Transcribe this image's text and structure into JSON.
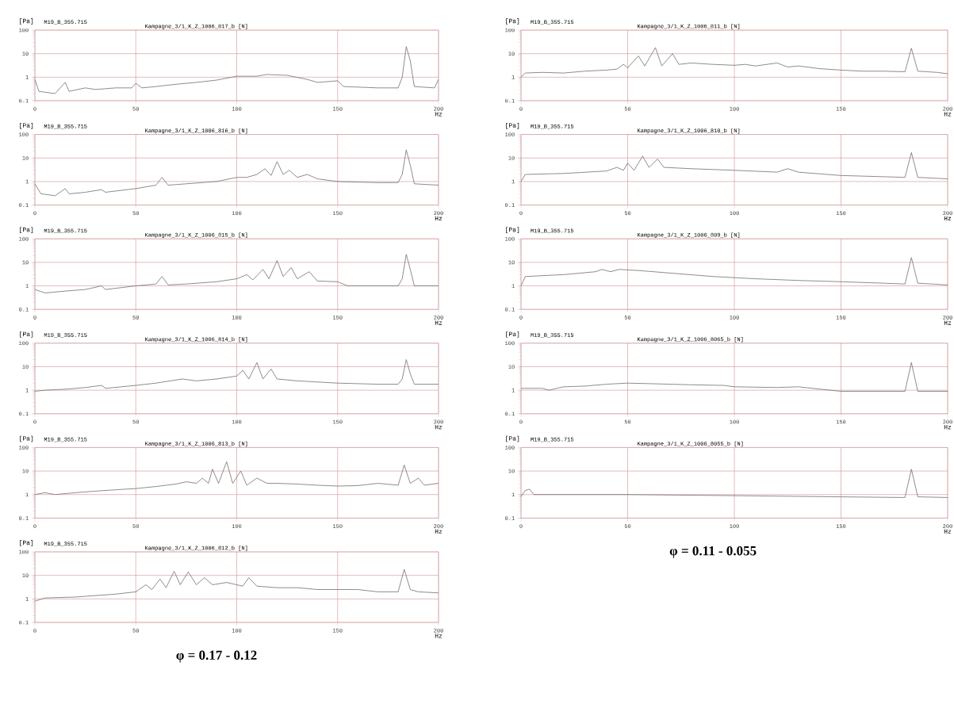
{
  "chart_data": [
    {
      "type": "line",
      "title": "M19_B_355.715",
      "subtitle": "Kampagne_3/1_K_Z_1006_817_b [N]",
      "ylabel": "[Pa]",
      "xlabel": "Hz",
      "log": "y",
      "grid": true,
      "xlim": [
        0,
        200
      ],
      "ylim": [
        0.1,
        100
      ],
      "xticks": [
        0,
        50,
        100,
        150,
        200
      ],
      "yticks": [
        0.1,
        1,
        10,
        100
      ],
      "x": [
        0,
        2,
        10,
        15,
        17,
        25,
        30,
        40,
        48,
        50,
        53,
        60,
        70,
        80,
        90,
        100,
        110,
        115,
        125,
        135,
        140,
        150,
        153,
        170,
        180,
        182,
        184,
        186,
        188,
        198,
        200
      ],
      "series": [
        {
          "color": "#707070",
          "values": [
            0.8,
            0.25,
            0.2,
            0.6,
            0.25,
            0.35,
            0.3,
            0.35,
            0.35,
            0.55,
            0.35,
            0.4,
            0.5,
            0.6,
            0.75,
            1.1,
            1.1,
            1.3,
            1.2,
            0.8,
            0.6,
            0.7,
            0.4,
            0.35,
            0.35,
            1,
            20,
            5,
            0.4,
            0.35,
            0.8
          ]
        }
      ]
    },
    {
      "type": "line",
      "title": "M19_B_355.715",
      "subtitle": "Kampagne_3/1_K_Z_1006_816_b [N]",
      "ylabel": "[Pa]",
      "xlabel": "Hz",
      "log": "y",
      "grid": true,
      "xlim": [
        0,
        200
      ],
      "ylim": [
        0.1,
        100
      ],
      "xticks": [
        0,
        50,
        100,
        150,
        200
      ],
      "yticks": [
        0.1,
        1,
        10,
        100
      ],
      "x": [
        0,
        3,
        10,
        15,
        17,
        25,
        33,
        35,
        50,
        60,
        63,
        66,
        75,
        90,
        100,
        105,
        110,
        114,
        117,
        120,
        123,
        126,
        130,
        135,
        140,
        150,
        170,
        180,
        182,
        184,
        186,
        188,
        200
      ],
      "series": [
        {
          "color": "#707070",
          "values": [
            0.8,
            0.3,
            0.25,
            0.5,
            0.3,
            0.35,
            0.45,
            0.35,
            0.5,
            0.7,
            1.5,
            0.7,
            0.8,
            1.0,
            1.5,
            1.5,
            2.0,
            3.5,
            1.8,
            7.0,
            2.0,
            3.0,
            1.5,
            2.0,
            1.3,
            1.0,
            0.9,
            0.9,
            2,
            22,
            5,
            0.8,
            0.7
          ]
        }
      ]
    },
    {
      "type": "line",
      "title": "M19_B_355.715",
      "subtitle": "Kampagne_3/1_K_Z_1006_815_b [N]",
      "ylabel": "[Pa]",
      "xlabel": "Hz",
      "log": "y",
      "grid": true,
      "xlim": [
        0,
        200
      ],
      "ylim": [
        0.1,
        100
      ],
      "xticks": [
        0,
        50,
        100,
        150,
        200
      ],
      "yticks": [
        0.1,
        1,
        10,
        100
      ],
      "x": [
        0,
        5,
        15,
        25,
        33,
        35,
        50,
        60,
        63,
        66,
        75,
        90,
        100,
        105,
        108,
        113,
        116,
        120,
        123,
        127,
        130,
        136,
        140,
        150,
        155,
        170,
        180,
        182,
        184,
        186,
        188,
        200
      ],
      "series": [
        {
          "color": "#707070",
          "values": [
            0.7,
            0.5,
            0.6,
            0.7,
            1.0,
            0.7,
            1.0,
            1.2,
            2.5,
            1.1,
            1.2,
            1.5,
            2.0,
            3.0,
            1.8,
            5,
            2,
            12,
            2.5,
            6,
            2,
            4,
            1.6,
            1.5,
            1.0,
            1.0,
            1.0,
            2,
            22,
            5,
            1.0,
            1.0
          ]
        }
      ]
    },
    {
      "type": "line",
      "title": "M19_B_355.715",
      "subtitle": "Kampagne_3/1_K_Z_1006_814_b [N]",
      "ylabel": "[Pa]",
      "xlabel": "Hz",
      "log": "y",
      "grid": true,
      "xlim": [
        0,
        200
      ],
      "ylim": [
        0.1,
        100
      ],
      "xticks": [
        0,
        50,
        100,
        150,
        200
      ],
      "yticks": [
        0.1,
        1,
        10,
        100
      ],
      "x": [
        0,
        5,
        15,
        25,
        33,
        35,
        50,
        60,
        73,
        80,
        90,
        100,
        103,
        106,
        110,
        113,
        117,
        120,
        130,
        150,
        170,
        180,
        182,
        184,
        186,
        188,
        200
      ],
      "series": [
        {
          "color": "#707070",
          "values": [
            0.9,
            1.0,
            1.1,
            1.3,
            1.6,
            1.2,
            1.6,
            2.0,
            3.0,
            2.5,
            3.0,
            4,
            7,
            3,
            15,
            3,
            8,
            3,
            2.5,
            2.0,
            1.8,
            1.8,
            3,
            20,
            5,
            1.8,
            1.8
          ]
        }
      ]
    },
    {
      "type": "line",
      "title": "M19_B_355.715",
      "subtitle": "Kampagne_3/1_K_Z_1006_813_b [N]",
      "ylabel": "[Pa]",
      "xlabel": "Hz",
      "log": "y",
      "grid": true,
      "xlim": [
        0,
        200
      ],
      "ylim": [
        0.1,
        100
      ],
      "xticks": [
        0,
        50,
        100,
        150,
        200
      ],
      "yticks": [
        0.1,
        1,
        10,
        100
      ],
      "x": [
        0,
        5,
        10,
        20,
        30,
        40,
        50,
        60,
        70,
        75,
        80,
        83,
        86,
        88,
        91,
        95,
        98,
        102,
        105,
        110,
        115,
        120,
        130,
        140,
        150,
        160,
        170,
        180,
        183,
        186,
        190,
        193,
        200
      ],
      "series": [
        {
          "color": "#707070",
          "values": [
            1.0,
            1.2,
            1.0,
            1.2,
            1.4,
            1.6,
            1.8,
            2.2,
            2.8,
            3.5,
            3.0,
            5,
            3,
            12,
            3,
            25,
            3,
            10,
            2.5,
            5,
            3,
            3,
            2.8,
            2.5,
            2.3,
            2.4,
            3,
            2.5,
            18,
            3,
            5,
            2.5,
            3
          ]
        }
      ]
    },
    {
      "type": "line",
      "title": "M19_B_355.715",
      "subtitle": "Kampagne_3/1_K_Z_1006_812_b [N]",
      "ylabel": "[Pa]",
      "xlabel": "Hz",
      "log": "y",
      "grid": true,
      "xlim": [
        0,
        200
      ],
      "ylim": [
        0.1,
        100
      ],
      "xticks": [
        0,
        50,
        100,
        150,
        200
      ],
      "yticks": [
        0.1,
        1,
        10,
        100
      ],
      "annotations": [
        "φ = 0.17 - 0.12"
      ],
      "x": [
        0,
        5,
        20,
        40,
        50,
        55,
        58,
        62,
        65,
        69,
        72,
        76,
        80,
        84,
        88,
        95,
        100,
        103,
        106,
        110,
        120,
        130,
        140,
        150,
        160,
        170,
        180,
        183,
        186,
        190,
        200
      ],
      "series": [
        {
          "color": "#707070",
          "values": [
            0.8,
            1.1,
            1.2,
            1.6,
            2.0,
            4,
            2.5,
            7,
            3,
            15,
            4,
            14,
            4,
            8,
            4,
            5,
            4,
            3.5,
            8,
            3.5,
            3,
            3,
            2.5,
            2.5,
            2.5,
            2,
            2,
            18,
            2.5,
            2,
            1.8
          ]
        }
      ]
    },
    {
      "type": "line",
      "title": "M19_B_355.715",
      "subtitle": "Kampagne_3/1_K_Z_1006_811_b [N]",
      "ylabel": "[Pa]",
      "xlabel": "Hz",
      "log": "y",
      "grid": true,
      "xlim": [
        0,
        200
      ],
      "ylim": [
        0.1,
        100
      ],
      "xticks": [
        0,
        50,
        100,
        150,
        200
      ],
      "yticks": [
        0.1,
        1,
        10,
        100
      ],
      "x": [
        0,
        2,
        10,
        20,
        30,
        40,
        45,
        48,
        50,
        55,
        58,
        63,
        66,
        71,
        74,
        80,
        90,
        100,
        105,
        110,
        120,
        125,
        130,
        140,
        150,
        160,
        170,
        180,
        183,
        186,
        195,
        200
      ],
      "series": [
        {
          "color": "#707070",
          "values": [
            1.0,
            1.5,
            1.6,
            1.5,
            1.8,
            2.0,
            2.2,
            3.5,
            2.5,
            8,
            3,
            18,
            3,
            10,
            3.5,
            4,
            3.5,
            3.2,
            3.5,
            3,
            4,
            2.7,
            3,
            2.3,
            2,
            1.8,
            1.8,
            1.7,
            17,
            1.8,
            1.6,
            1.4
          ]
        }
      ]
    },
    {
      "type": "line",
      "title": "M19_B_355.715",
      "subtitle": "Kampagne_3/1_K_Z_1006_810_b [N]",
      "ylabel": "[Pa]",
      "xlabel": "Hz",
      "log": "y",
      "grid": true,
      "xlim": [
        0,
        200
      ],
      "ylim": [
        0.1,
        100
      ],
      "xticks": [
        0,
        50,
        100,
        150,
        200
      ],
      "yticks": [
        0.1,
        1,
        10,
        100
      ],
      "x": [
        0,
        2,
        20,
        40,
        45,
        48,
        50,
        53,
        57,
        60,
        64,
        67,
        80,
        100,
        120,
        125,
        130,
        150,
        170,
        180,
        183,
        186,
        200
      ],
      "series": [
        {
          "color": "#707070",
          "values": [
            1.0,
            2.0,
            2.2,
            2.8,
            4,
            3,
            6,
            3,
            12,
            4,
            9,
            4,
            3.5,
            3,
            2.5,
            3.5,
            2.5,
            1.8,
            1.6,
            1.5,
            17,
            1.5,
            1.3
          ]
        }
      ]
    },
    {
      "type": "line",
      "title": "M19_B_355.715",
      "subtitle": "Kampagne_3/1_K_Z_1006_809_b [N]",
      "ylabel": "[Pa]",
      "xlabel": "Hz",
      "log": "y",
      "grid": true,
      "xlim": [
        0,
        200
      ],
      "ylim": [
        0.1,
        100
      ],
      "xticks": [
        0,
        50,
        100,
        150,
        200
      ],
      "yticks": [
        0.1,
        1,
        10,
        100
      ],
      "x": [
        0,
        2,
        20,
        35,
        38,
        42,
        46,
        55,
        70,
        90,
        110,
        130,
        150,
        170,
        180,
        183,
        186,
        200
      ],
      "series": [
        {
          "color": "#707070",
          "values": [
            1.0,
            2.5,
            3,
            4,
            5,
            4,
            5,
            4.5,
            3.5,
            2.5,
            2,
            1.7,
            1.5,
            1.3,
            1.2,
            16,
            1.3,
            1.1
          ]
        }
      ]
    },
    {
      "type": "line",
      "title": "M19_B_355.715",
      "subtitle": "Kampagne_3/1_K_Z_1006_8065_b [N]",
      "ylabel": "[Pa]",
      "xlabel": "Hz",
      "log": "y",
      "grid": true,
      "xlim": [
        0,
        200
      ],
      "ylim": [
        0.1,
        100
      ],
      "xticks": [
        0,
        50,
        100,
        150,
        200
      ],
      "yticks": [
        0.1,
        1,
        10,
        100
      ],
      "x": [
        0,
        10,
        13,
        20,
        30,
        40,
        50,
        60,
        80,
        95,
        100,
        120,
        130,
        145,
        150,
        170,
        180,
        183,
        186,
        200
      ],
      "series": [
        {
          "color": "#707070",
          "values": [
            1.2,
            1.2,
            1.0,
            1.4,
            1.5,
            1.8,
            2.0,
            1.9,
            1.7,
            1.6,
            1.4,
            1.3,
            1.4,
            1.0,
            0.9,
            0.9,
            0.9,
            15,
            0.9,
            0.9
          ]
        }
      ]
    },
    {
      "type": "line",
      "title": "M19_B_355.715",
      "subtitle": "Kampagne_3/1_K_Z_1006_8055_b [N]",
      "ylabel": "[Pa]",
      "xlabel": "Hz",
      "log": "y",
      "grid": true,
      "xlim": [
        0,
        200
      ],
      "ylim": [
        0.1,
        100
      ],
      "xticks": [
        0,
        50,
        100,
        150,
        200
      ],
      "yticks": [
        0.1,
        1,
        10,
        100
      ],
      "annotations": [
        "φ = 0.11 - 0.055"
      ],
      "x": [
        0,
        2,
        4,
        6,
        20,
        50,
        100,
        150,
        180,
        183,
        186,
        200
      ],
      "series": [
        {
          "color": "#707070",
          "values": [
            0.8,
            1.5,
            1.7,
            1.0,
            1.0,
            1.0,
            0.9,
            0.8,
            0.75,
            12,
            0.8,
            0.75
          ]
        }
      ]
    }
  ]
}
